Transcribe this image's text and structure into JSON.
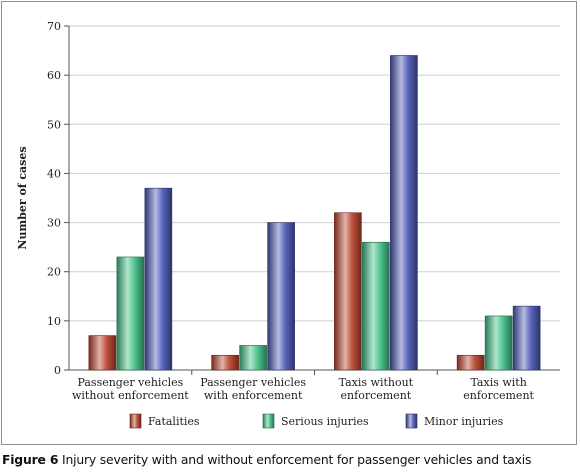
{
  "chart_data": {
    "type": "bar",
    "ylabel": "Number of cases",
    "ylim": [
      0,
      70
    ],
    "yticks": [
      0,
      10,
      20,
      30,
      40,
      50,
      60,
      70
    ],
    "grid": true,
    "legend_position": "bottom",
    "categories": [
      [
        "Passenger vehicles",
        "without enforcement"
      ],
      [
        "Passenger vehicles",
        "with enforcement"
      ],
      [
        "Taxis without",
        "enforcement"
      ],
      [
        "Taxis with",
        "enforcement"
      ]
    ],
    "series": [
      {
        "name": "Fatalities",
        "values": [
          7,
          3,
          32,
          3
        ],
        "color": "#b8402a"
      },
      {
        "name": "Serious injuries",
        "values": [
          23,
          5,
          26,
          11
        ],
        "color": "#3fbf84"
      },
      {
        "name": "Minor injuries",
        "values": [
          37,
          30,
          64,
          13
        ],
        "color": "#4a56b5"
      }
    ]
  },
  "caption": {
    "figure_label": "Figure 6",
    "text": "Injury severity with and without enforcement for passenger vehicles and taxis"
  }
}
